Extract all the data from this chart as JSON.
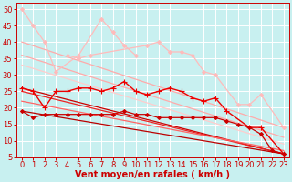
{
  "background_color": "#c8f0f0",
  "grid_color": "#ffffff",
  "xlabel": "Vent moyen/en rafales ( km/h )",
  "xlabel_color": "#cc0000",
  "xlabel_fontsize": 7,
  "tick_color": "#cc0000",
  "tick_fontsize": 6,
  "ylim": [
    5,
    52
  ],
  "xlim": [
    -0.5,
    23.5
  ],
  "yticks": [
    5,
    10,
    15,
    20,
    25,
    30,
    35,
    40,
    45,
    50
  ],
  "xticks": [
    0,
    1,
    2,
    3,
    4,
    5,
    6,
    7,
    8,
    9,
    10,
    11,
    12,
    13,
    14,
    15,
    16,
    17,
    18,
    19,
    20,
    21,
    22,
    23
  ],
  "lines": [
    {
      "x": [
        0,
        1,
        2,
        3,
        4,
        5,
        6,
        7,
        8,
        9,
        10,
        11,
        12,
        13,
        14,
        15,
        16,
        17,
        18,
        19,
        20,
        21,
        22,
        23
      ],
      "y": [
        50,
        45,
        40,
        31,
        null,
        36,
        null,
        47,
        43,
        39,
        36,
        null,
        null,
        null,
        null,
        null,
        null,
        null,
        null,
        null,
        null,
        null,
        null,
        null
      ],
      "color": "#ffbbbb",
      "marker": "D",
      "markersize": 2.0,
      "linewidth": 0.9
    },
    {
      "x": [
        0,
        1,
        2,
        3,
        4,
        5,
        6,
        7,
        8,
        9,
        10,
        11,
        12,
        13,
        14,
        15,
        16,
        17,
        18,
        19,
        20,
        21,
        22,
        23
      ],
      "y": [
        null,
        null,
        null,
        null,
        36,
        35,
        36,
        null,
        null,
        null,
        null,
        39,
        40,
        37,
        37,
        36,
        31,
        30,
        null,
        21,
        21,
        24,
        null,
        14
      ],
      "color": "#ffbbbb",
      "marker": "D",
      "markersize": 2.0,
      "linewidth": 0.9
    },
    {
      "x": [
        0,
        23
      ],
      "y": [
        40,
        14
      ],
      "color": "#ffaaaa",
      "marker": null,
      "linewidth": 0.9,
      "linestyle": "-"
    },
    {
      "x": [
        0,
        23
      ],
      "y": [
        36,
        11
      ],
      "color": "#ffaaaa",
      "marker": null,
      "linewidth": 0.9,
      "linestyle": "-"
    },
    {
      "x": [
        0,
        23
      ],
      "y": [
        33,
        9
      ],
      "color": "#ffcccc",
      "marker": null,
      "linewidth": 0.9,
      "linestyle": "-"
    },
    {
      "x": [
        0,
        1,
        2,
        3,
        4,
        5,
        6,
        7,
        8,
        9,
        10,
        11,
        12,
        13,
        14,
        15,
        16,
        17,
        18,
        19,
        20,
        21,
        22,
        23
      ],
      "y": [
        26,
        25,
        20,
        25,
        25,
        26,
        26,
        25,
        26,
        28,
        25,
        24,
        25,
        26,
        25,
        23,
        22,
        23,
        19,
        null,
        14,
        14,
        null,
        6
      ],
      "color": "#ee0000",
      "marker": "+",
      "markersize": 4,
      "linewidth": 1.0
    },
    {
      "x": [
        0,
        1,
        2,
        3,
        4,
        5,
        6,
        7,
        8,
        9,
        10,
        11,
        12,
        13,
        14,
        15,
        16,
        17,
        18,
        19,
        20,
        21,
        22,
        23
      ],
      "y": [
        19,
        17,
        18,
        18,
        18,
        18,
        18,
        18,
        18,
        19,
        18,
        18,
        17,
        17,
        17,
        17,
        17,
        17,
        16,
        15,
        14,
        12,
        7,
        6
      ],
      "color": "#cc0000",
      "marker": "D",
      "markersize": 2.0,
      "linewidth": 0.9
    },
    {
      "x": [
        0,
        23
      ],
      "y": [
        26,
        6
      ],
      "color": "#cc0000",
      "marker": null,
      "linewidth": 0.9,
      "linestyle": "-"
    },
    {
      "x": [
        0,
        23
      ],
      "y": [
        25,
        6
      ],
      "color": "#ee2222",
      "marker": null,
      "linewidth": 0.9,
      "linestyle": "-"
    },
    {
      "x": [
        0,
        23
      ],
      "y": [
        22,
        7
      ],
      "color": "#ff6666",
      "marker": null,
      "linewidth": 0.9,
      "linestyle": "-"
    },
    {
      "x": [
        0,
        23
      ],
      "y": [
        19,
        6
      ],
      "color": "#bb0000",
      "marker": null,
      "linewidth": 0.9,
      "linestyle": "-"
    }
  ],
  "arrow_color": "#cc0000",
  "arrow_fontsize": 5.5
}
